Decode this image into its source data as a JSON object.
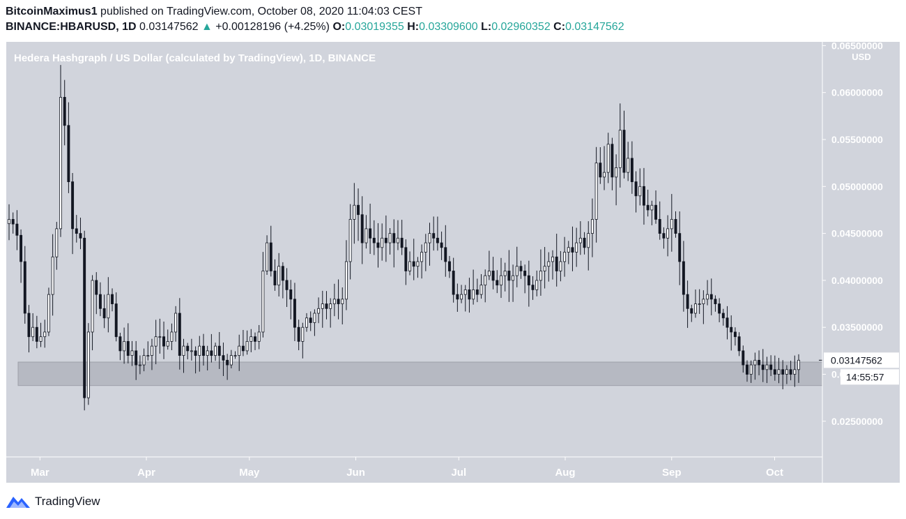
{
  "header": {
    "author": "BitcoinMaximus1",
    "published": "published on TradingView.com, October 08, 2020 11:04:03 CEST",
    "symbol": "BINANCE:HBARUSD, 1D",
    "last": "0.03147562",
    "change": "+0.00128196 (+4.25%)",
    "o_label": "O:",
    "o": "0.03019355",
    "h_label": "H:",
    "h": "0.03309600",
    "l_label": "L:",
    "l": "0.02960352",
    "c_label": "C:",
    "c": "0.03147562"
  },
  "footer": {
    "brand": "TradingView"
  },
  "colors": {
    "background": "#d1d4dc",
    "candle": "#131722",
    "up_body": "#ffffff",
    "zone": "#b2b5be",
    "accent": "#26a69a",
    "brand": "#2962ff"
  },
  "chart_data": {
    "type": "candlestick",
    "title": "Hedera Hashgraph / US Dollar (calculated by TradingView), 1D, BINANCE",
    "currency": "USD",
    "y_ticks": [
      0.025,
      0.03,
      0.035,
      0.04,
      0.045,
      0.05,
      0.055,
      0.06,
      0.065
    ],
    "y_tick_labels": [
      "0.02500000",
      "0.03000000",
      "0.03500000",
      "0.04000000",
      "0.04500000",
      "0.05000000",
      "0.05500000",
      "0.06000000",
      "0.06500000"
    ],
    "ylim": [
      0.0212,
      0.0654
    ],
    "x_labels": [
      "Mar",
      "Apr",
      "May",
      "Jun",
      "Jul",
      "Aug",
      "Sep",
      "Oct"
    ],
    "date_start": "2020-02-21",
    "date_end": "2020-10-08",
    "last_price_label": "0.03147562",
    "countdown": "14:55:57",
    "support_zone": [
      0.0288,
      0.0313
    ],
    "closes": [
      0.0465,
      0.046,
      0.0448,
      0.042,
      0.0365,
      0.034,
      0.035,
      0.0335,
      0.034,
      0.0345,
      0.0385,
      0.0425,
      0.0455,
      0.0595,
      0.0565,
      0.0505,
      0.0455,
      0.045,
      0.0445,
      0.0275,
      0.0345,
      0.04,
      0.0385,
      0.037,
      0.036,
      0.0385,
      0.0375,
      0.034,
      0.0325,
      0.0335,
      0.032,
      0.0325,
      0.031,
      0.031,
      0.032,
      0.032,
      0.033,
      0.034,
      0.034,
      0.033,
      0.0335,
      0.0345,
      0.0365,
      0.032,
      0.033,
      0.0325,
      0.0325,
      0.032,
      0.033,
      0.032,
      0.0325,
      0.032,
      0.033,
      0.032,
      0.0315,
      0.031,
      0.032,
      0.032,
      0.033,
      0.0325,
      0.0335,
      0.034,
      0.0335,
      0.0345,
      0.041,
      0.044,
      0.041,
      0.0395,
      0.0415,
      0.04,
      0.039,
      0.038,
      0.035,
      0.0335,
      0.035,
      0.036,
      0.0355,
      0.0365,
      0.037,
      0.0375,
      0.037,
      0.0375,
      0.038,
      0.0375,
      0.038,
      0.042,
      0.0465,
      0.048,
      0.047,
      0.044,
      0.0455,
      0.0445,
      0.044,
      0.0435,
      0.0445,
      0.044,
      0.045,
      0.044,
      0.0445,
      0.0435,
      0.041,
      0.042,
      0.0415,
      0.042,
      0.043,
      0.044,
      0.045,
      0.0445,
      0.044,
      0.0435,
      0.042,
      0.041,
      0.0385,
      0.038,
      0.0385,
      0.039,
      0.038,
      0.039,
      0.0385,
      0.0395,
      0.0405,
      0.041,
      0.04,
      0.0395,
      0.0405,
      0.041,
      0.04,
      0.0405,
      0.0415,
      0.041,
      0.0405,
      0.0395,
      0.039,
      0.04,
      0.041,
      0.0415,
      0.042,
      0.0425,
      0.041,
      0.042,
      0.043,
      0.0435,
      0.043,
      0.044,
      0.0445,
      0.0435,
      0.045,
      0.0465,
      0.0525,
      0.051,
      0.0515,
      0.0545,
      0.051,
      0.052,
      0.056,
      0.0515,
      0.053,
      0.0505,
      0.049,
      0.05,
      0.048,
      0.0475,
      0.048,
      0.0465,
      0.045,
      0.0445,
      0.0455,
      0.0465,
      0.045,
      0.042,
      0.0385,
      0.037,
      0.0365,
      0.0375,
      0.0375,
      0.038,
      0.0385,
      0.038,
      0.0375,
      0.0365,
      0.036,
      0.035,
      0.0345,
      0.034,
      0.0325,
      0.031,
      0.03,
      0.031,
      0.0315,
      0.031,
      0.0305,
      0.031,
      0.0305,
      0.03,
      0.0305,
      0.03,
      0.0305,
      0.03,
      0.0305,
      0.0315
    ]
  }
}
